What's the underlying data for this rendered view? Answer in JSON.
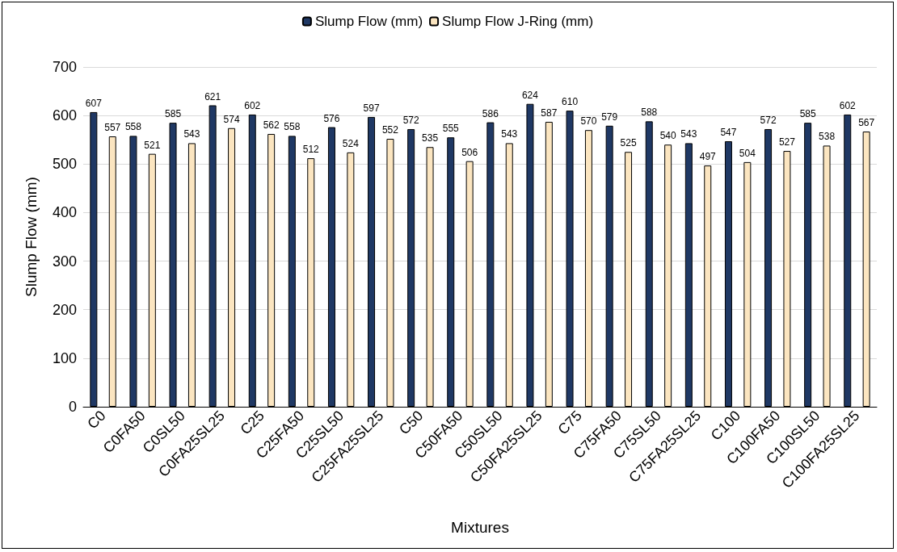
{
  "chart_data": {
    "type": "bar",
    "xlabel": "Mixtures",
    "ylabel": "Slump Flow (mm)",
    "categories": [
      "C0",
      "C0FA50",
      "C0SL50",
      "C0FA25SL25",
      "C25",
      "C25FA50",
      "C25SL50",
      "C25FA25SL25",
      "C50",
      "C50FA50",
      "C50SL50",
      "C50FA25SL25",
      "C75",
      "C75FA50",
      "C75SL50",
      "C75FA25SL25",
      "C100",
      "C100FA50",
      "C100SL50",
      "C100FA25SL25"
    ],
    "series": [
      {
        "name": "Slump Flow (mm)",
        "color": "#1f3864",
        "values": [
          607,
          558,
          585,
          621,
          602,
          558,
          576,
          597,
          572,
          555,
          586,
          624,
          610,
          579,
          588,
          543,
          547,
          572,
          585,
          602
        ]
      },
      {
        "name": "Slump Flow J-Ring (mm)",
        "color": "#fbe5c0",
        "values": [
          557,
          521,
          543,
          574,
          562,
          512,
          524,
          552,
          535,
          506,
          543,
          587,
          570,
          525,
          540,
          497,
          504,
          527,
          538,
          567
        ]
      }
    ],
    "ylim": [
      0,
      700
    ],
    "yticks": [
      0,
      100,
      200,
      300,
      400,
      500,
      600,
      700
    ],
    "grid": "y",
    "legend": "top",
    "data_labels": true
  }
}
